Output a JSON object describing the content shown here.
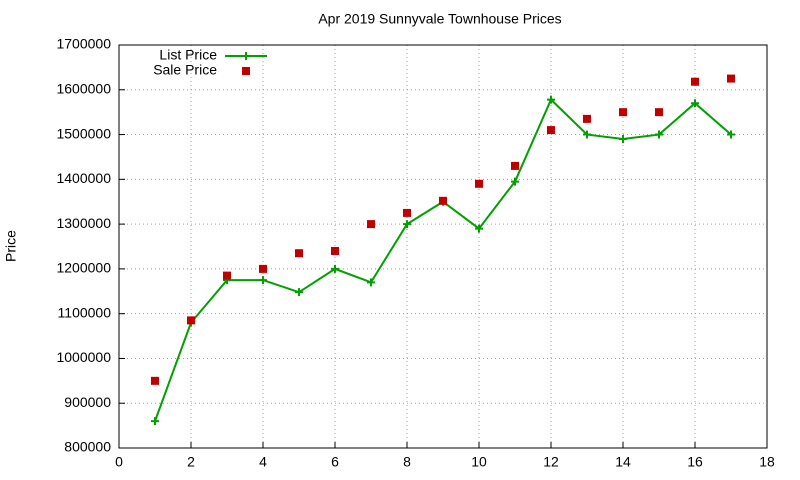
{
  "chart_data": {
    "type": "line",
    "title": "Apr 2019 Sunnyvale Townhouse Prices",
    "y_label": "Price",
    "x": [
      1,
      2,
      3,
      4,
      5,
      6,
      7,
      8,
      9,
      10,
      11,
      12,
      13,
      14,
      15,
      16,
      17
    ],
    "series": [
      {
        "name": "List Price",
        "color": "#00a000",
        "line": true,
        "marker": "plus",
        "values": [
          860000,
          1080000,
          1175000,
          1175000,
          1148000,
          1200000,
          1170000,
          1300000,
          1350000,
          1290000,
          1395000,
          1578000,
          1500000,
          1490000,
          1500000,
          1570000,
          1500000
        ]
      },
      {
        "name": "Sale Price",
        "color": "#c00000",
        "line": false,
        "marker": "square",
        "values": [
          950000,
          1085000,
          1185000,
          1200000,
          1235000,
          1240000,
          1300000,
          1325000,
          1352000,
          1390000,
          1430000,
          1510000,
          1535000,
          1550000,
          1550000,
          1618000,
          1625000
        ]
      }
    ],
    "xlim": [
      0,
      18
    ],
    "xticks": [
      0,
      2,
      4,
      6,
      8,
      10,
      12,
      14,
      16,
      18
    ],
    "ylim": [
      800000,
      1700000
    ],
    "yticks": [
      800000,
      900000,
      1000000,
      1100000,
      1200000,
      1300000,
      1400000,
      1500000,
      1600000,
      1700000
    ],
    "grid": true,
    "legend": "top-left"
  }
}
